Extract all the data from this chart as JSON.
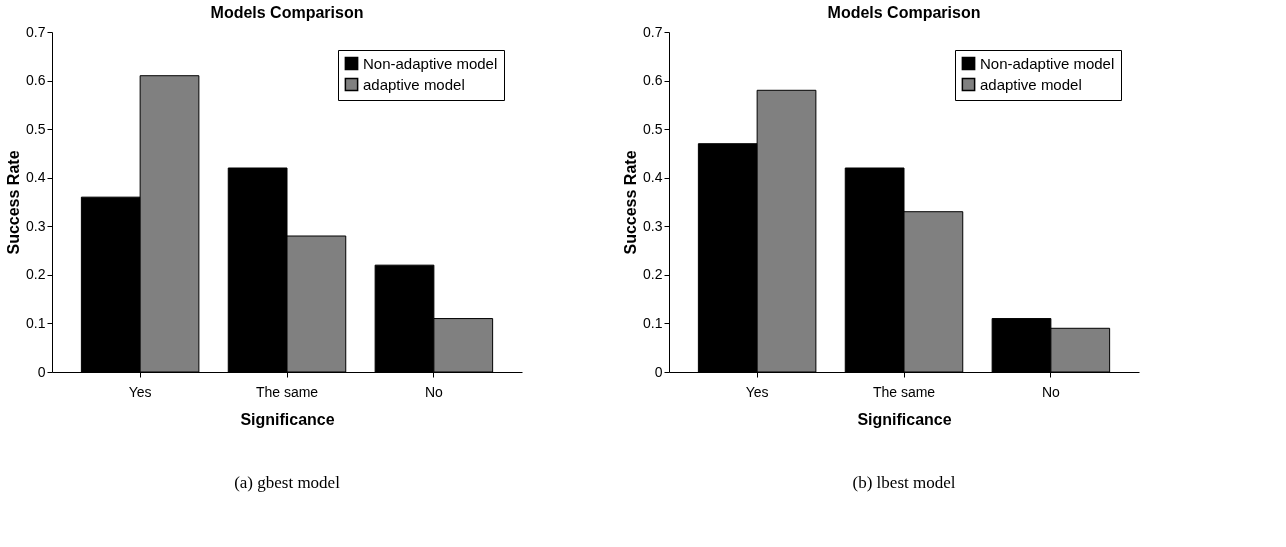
{
  "chart_data": [
    {
      "type": "bar",
      "title": "Models Comparison",
      "xlabel": "Significance",
      "ylabel": "Success Rate",
      "categories": [
        "Yes",
        "The same",
        "No"
      ],
      "series": [
        {
          "name": "Non-adaptive model",
          "color": "#000000",
          "values": [
            0.36,
            0.42,
            0.22
          ]
        },
        {
          "name": "adaptive model",
          "color": "#808080",
          "values": [
            0.61,
            0.28,
            0.11
          ]
        }
      ],
      "ylim": [
        0,
        0.7
      ],
      "yticks": [
        0,
        0.1,
        0.2,
        0.3,
        0.4,
        0.5,
        0.6,
        0.7
      ],
      "grid": false,
      "legend": "top right",
      "annotations": [
        "(a) gbest model"
      ]
    },
    {
      "type": "bar",
      "title": "Models Comparison",
      "xlabel": "Significance",
      "ylabel": "Success Rate",
      "categories": [
        "Yes",
        "The same",
        "No"
      ],
      "series": [
        {
          "name": "Non-adaptive model",
          "color": "#000000",
          "values": [
            0.47,
            0.42,
            0.11
          ]
        },
        {
          "name": "adaptive model",
          "color": "#808080",
          "values": [
            0.58,
            0.33,
            0.09
          ]
        }
      ],
      "ylim": [
        0,
        0.7
      ],
      "yticks": [
        0,
        0.1,
        0.2,
        0.3,
        0.4,
        0.5,
        0.6,
        0.7
      ],
      "grid": false,
      "legend": "top right",
      "annotations": [
        "(b) lbest model"
      ]
    }
  ]
}
